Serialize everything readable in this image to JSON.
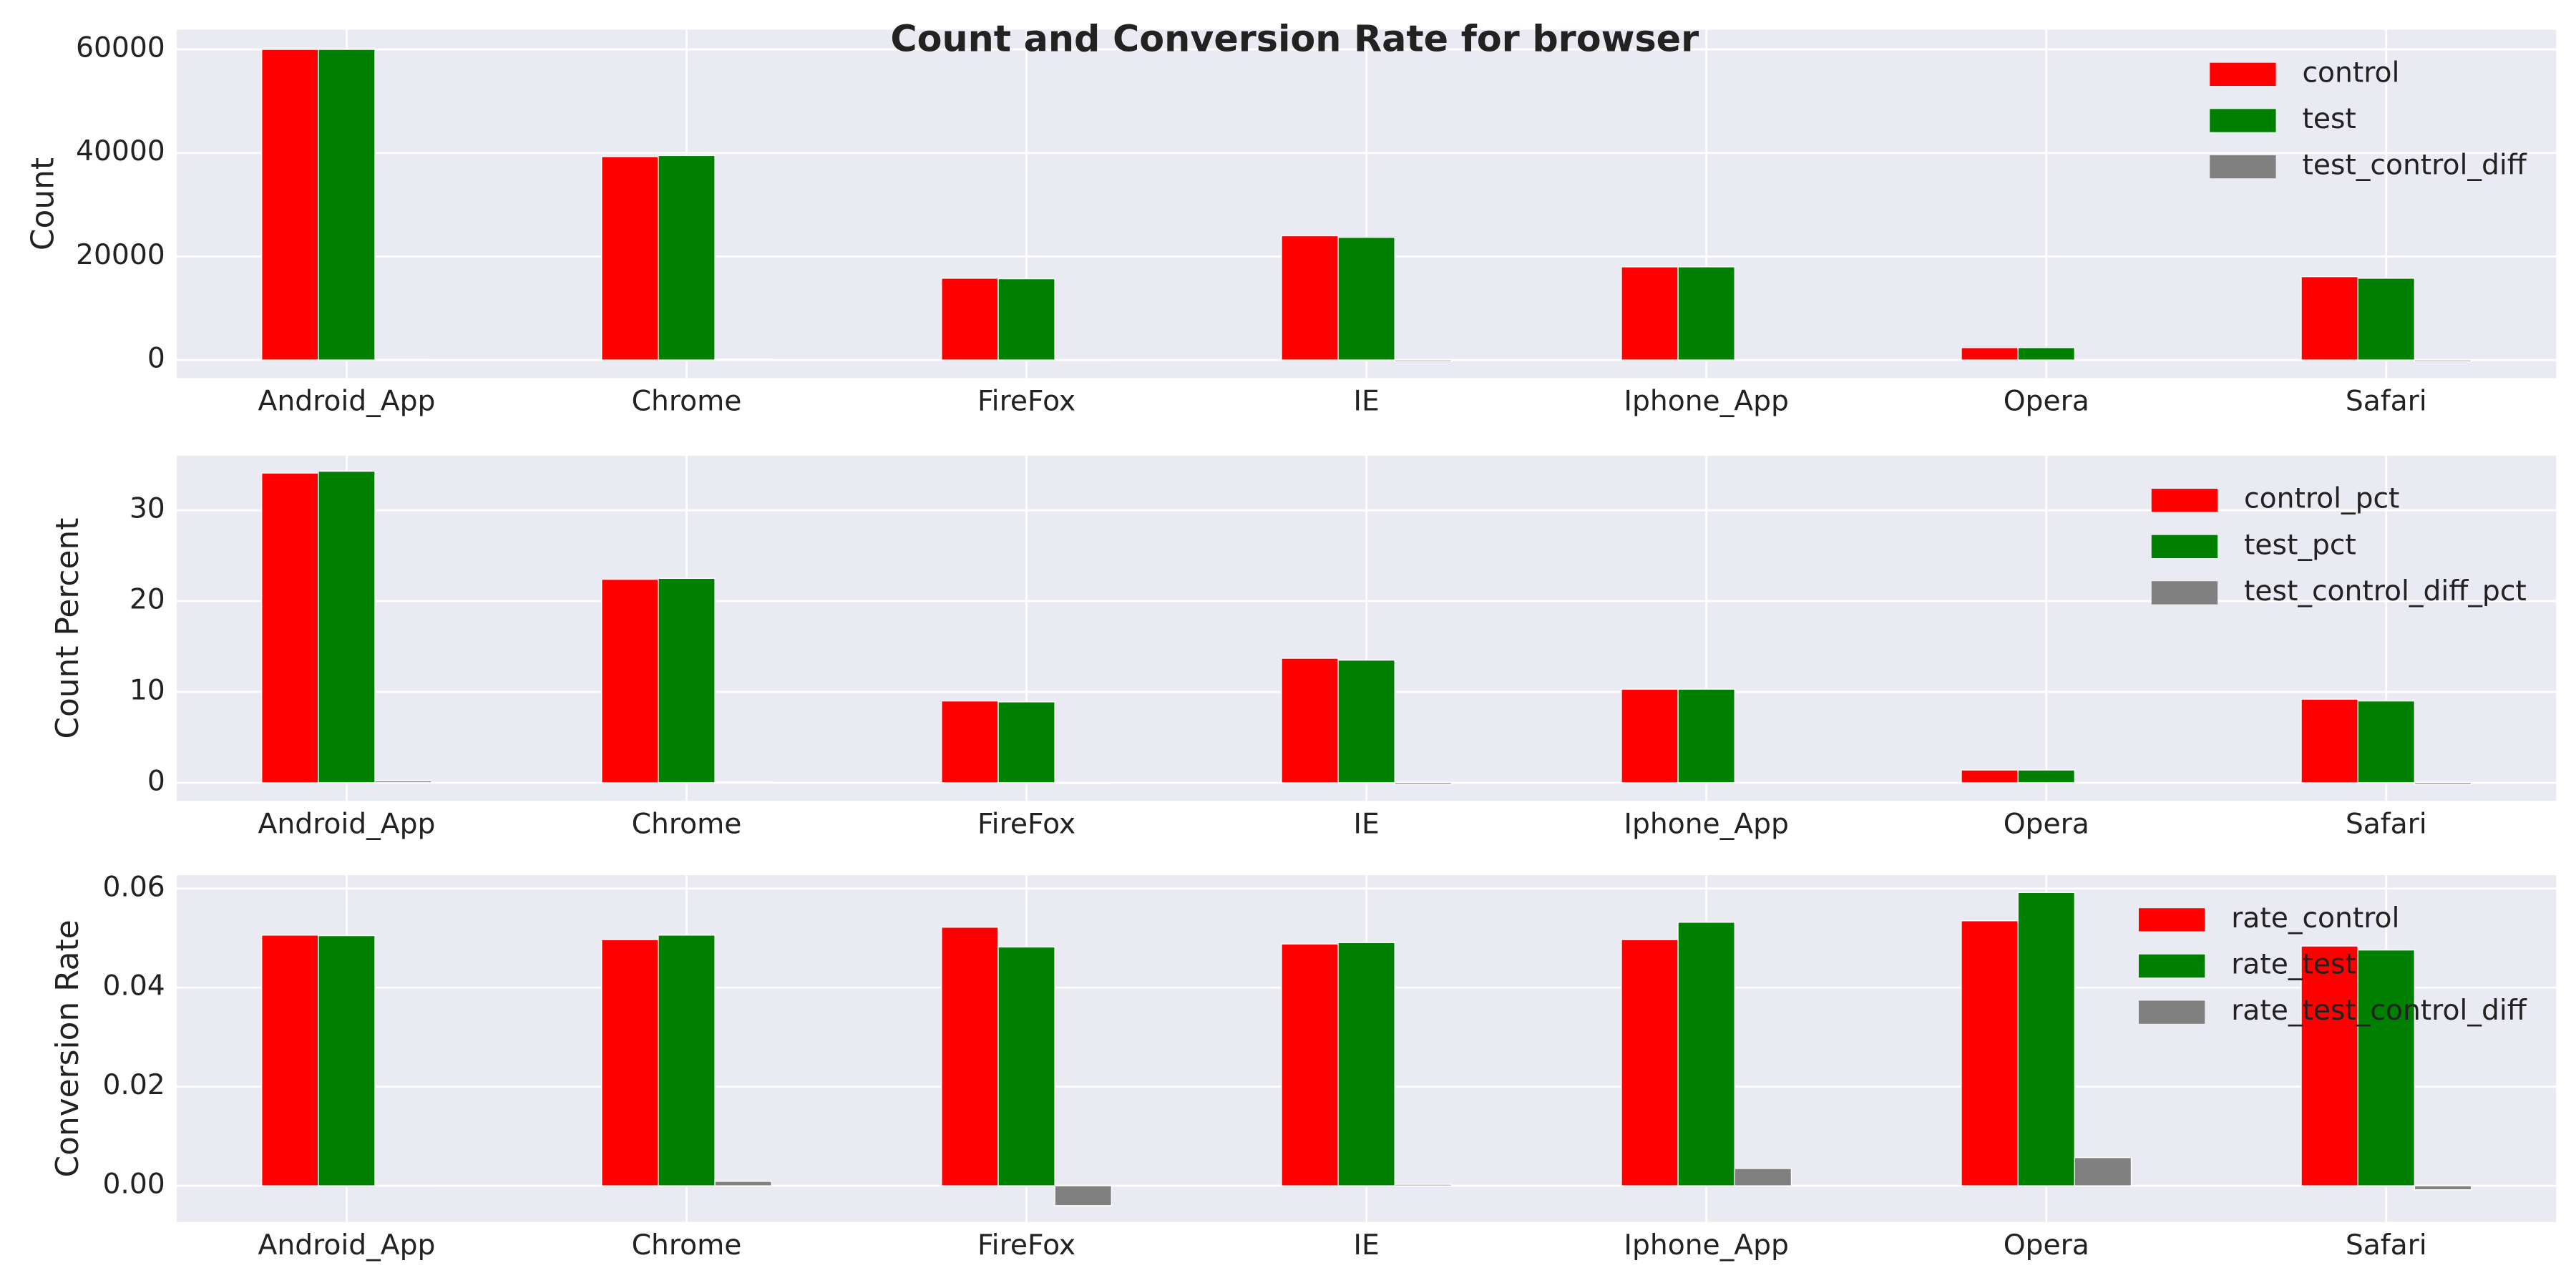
{
  "title": "Count and Conversion Rate for browser",
  "chart_data": [
    {
      "type": "bar",
      "ylabel": "Count",
      "categories": [
        "Android_App",
        "Chrome",
        "FireFox",
        "IE",
        "Iphone_App",
        "Opera",
        "Safari"
      ],
      "series": [
        {
          "name": "control",
          "color": "#ff0000",
          "values": [
            60000,
            39300,
            15800,
            24000,
            18000,
            2400,
            16100
          ]
        },
        {
          "name": "test",
          "color": "#008000",
          "values": [
            60000,
            39500,
            15700,
            23700,
            18000,
            2400,
            15800
          ]
        },
        {
          "name": "test_control_diff",
          "color": "#808080",
          "values": [
            100,
            200,
            -100,
            -300,
            0,
            0,
            -300
          ]
        }
      ],
      "ylim": [
        -3500,
        63800
      ],
      "yticks": [
        0,
        20000,
        40000,
        60000
      ],
      "grid": true,
      "legend": "upper right"
    },
    {
      "type": "bar",
      "ylabel": "Count Percent",
      "categories": [
        "Android_App",
        "Chrome",
        "FireFox",
        "IE",
        "Iphone_App",
        "Opera",
        "Safari"
      ],
      "series": [
        {
          "name": "control_pct",
          "color": "#ff0000",
          "values": [
            34.1,
            22.4,
            9.0,
            13.7,
            10.3,
            1.4,
            9.2
          ]
        },
        {
          "name": "test_pct",
          "color": "#008000",
          "values": [
            34.3,
            22.5,
            8.9,
            13.5,
            10.3,
            1.4,
            9.0
          ]
        },
        {
          "name": "test_control_diff_pct",
          "color": "#808080",
          "values": [
            0.2,
            0.1,
            -0.1,
            -0.2,
            0,
            0,
            -0.2
          ]
        }
      ],
      "ylim": [
        -2,
        36
      ],
      "yticks": [
        0,
        10,
        20,
        30
      ],
      "grid": true,
      "legend": "upper right"
    },
    {
      "type": "bar",
      "ylabel": "Conversion Rate",
      "categories": [
        "Android_App",
        "Chrome",
        "FireFox",
        "IE",
        "Iphone_App",
        "Opera",
        "Safari"
      ],
      "series": [
        {
          "name": "rate_control",
          "color": "#ff0000",
          "values": [
            0.0506,
            0.0497,
            0.0522,
            0.0488,
            0.0497,
            0.0535,
            0.0484
          ]
        },
        {
          "name": "rate_test",
          "color": "#008000",
          "values": [
            0.0505,
            0.0506,
            0.0482,
            0.0491,
            0.0532,
            0.0592,
            0.0476
          ]
        },
        {
          "name": "rate_test_control_diff",
          "color": "#808080",
          "values": [
            -0.0001,
            0.0009,
            -0.004,
            0.0003,
            0.0035,
            0.0057,
            -0.0008
          ]
        }
      ],
      "ylim": [
        -0.0073,
        0.0627
      ],
      "yticks": [
        {
          "value": 0,
          "label": "0.00"
        },
        {
          "value": 0.02,
          "label": "0.02"
        },
        {
          "value": 0.04,
          "label": "0.04"
        },
        {
          "value": 0.06,
          "label": "0.06"
        }
      ],
      "grid": true,
      "legend": "upper right"
    }
  ]
}
